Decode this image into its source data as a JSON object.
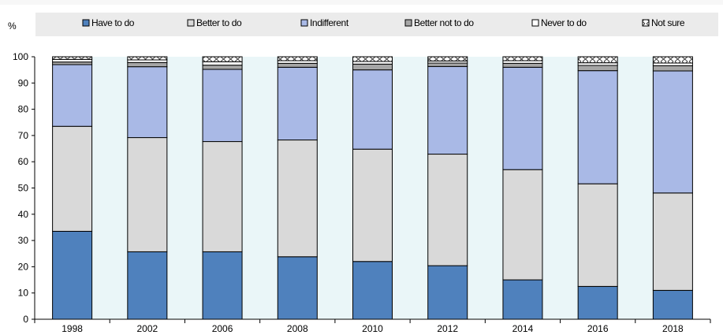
{
  "chart_data": {
    "type": "bar",
    "stacked": true,
    "ylabel": "%",
    "ylim": [
      0,
      100
    ],
    "yticks": [
      0,
      10,
      20,
      30,
      40,
      50,
      60,
      70,
      80,
      90,
      100
    ],
    "categories": [
      "1998",
      "2002",
      "2006",
      "2008",
      "2010",
      "2012",
      "2014",
      "2016",
      "2018"
    ],
    "legend_position": "top",
    "grid": false,
    "series": [
      {
        "name": "Have to do",
        "color": "#4f81bd",
        "pattern": "solid",
        "values": [
          33.5,
          25.7,
          25.7,
          23.8,
          22.0,
          20.4,
          15.0,
          12.5,
          11.0
        ]
      },
      {
        "name": "Better to do",
        "color": "#d9d9d9",
        "pattern": "solid",
        "values": [
          40.0,
          43.5,
          42.0,
          44.5,
          42.8,
          42.5,
          42.0,
          39.1,
          37.1
        ]
      },
      {
        "name": "Indifferent",
        "color": "#a9b9e6",
        "pattern": "solid",
        "values": [
          23.5,
          27.0,
          27.5,
          27.7,
          30.2,
          33.4,
          39.0,
          43.1,
          46.5
        ]
      },
      {
        "name": "Better not to do",
        "color": "#a6a6a6",
        "pattern": "solid",
        "values": [
          1.0,
          1.6,
          1.6,
          1.5,
          2.2,
          1.3,
          1.5,
          2.0,
          2.0
        ]
      },
      {
        "name": "Never to do",
        "color": "#ffffff",
        "pattern": "solid",
        "values": [
          1.0,
          1.0,
          1.3,
          1.0,
          1.0,
          0.8,
          1.0,
          1.0,
          1.0
        ]
      },
      {
        "name": "Not sure",
        "color": "#ffffff",
        "pattern": "cross",
        "values": [
          1.0,
          1.2,
          1.9,
          1.5,
          1.8,
          1.6,
          1.5,
          2.3,
          2.4
        ]
      }
    ],
    "colors": {
      "panel_background": "#eaf6f8",
      "legend_background": "#ebebeb",
      "bar_outline": "#000000",
      "axis": "#000000",
      "text": "#000000"
    }
  }
}
